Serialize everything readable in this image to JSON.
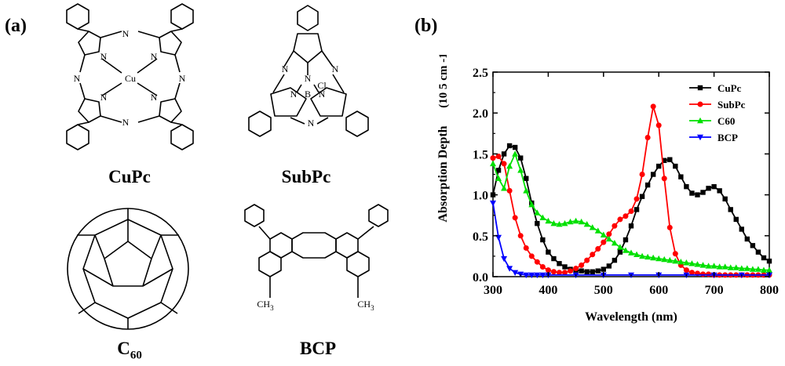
{
  "panel_a_label": "(a)",
  "panel_b_label": "(b)",
  "molecules": {
    "cupc": {
      "name": "CuPc",
      "center_atom": "Cu",
      "n": "N"
    },
    "subpc": {
      "name": "SubPc",
      "center_atom": "B",
      "ligand": "Cl",
      "n": "N"
    },
    "c60": {
      "name_main": "C",
      "name_sub": "60"
    },
    "bcp": {
      "name": "BCP",
      "methyl_label": "CH",
      "methyl_sub": "3"
    }
  },
  "chart_data": {
    "type": "line",
    "xlabel": "Wavelength (nm)",
    "ylabel": "Absorption Depth",
    "yunit": "(10 5 cm -1)",
    "xlim": [
      300,
      800
    ],
    "ylim": [
      0.0,
      2.5
    ],
    "xticks": [
      "300",
      "400",
      "500",
      "600",
      "700",
      "800"
    ],
    "yticks": [
      "0.0",
      "0.5",
      "1.0",
      "1.5",
      "2.0",
      "2.5"
    ],
    "legend_position": "top-right",
    "series": [
      {
        "name": "CuPc",
        "color": "#000000",
        "marker": "square",
        "x": [
          300,
          310,
          320,
          330,
          340,
          350,
          360,
          370,
          380,
          390,
          400,
          410,
          420,
          430,
          440,
          450,
          460,
          470,
          480,
          490,
          500,
          510,
          520,
          530,
          540,
          550,
          560,
          570,
          580,
          590,
          600,
          610,
          620,
          630,
          640,
          650,
          660,
          670,
          680,
          690,
          700,
          710,
          720,
          730,
          740,
          750,
          760,
          770,
          780,
          790,
          800
        ],
        "y": [
          1.0,
          1.3,
          1.5,
          1.6,
          1.58,
          1.45,
          1.2,
          0.9,
          0.65,
          0.45,
          0.3,
          0.22,
          0.16,
          0.12,
          0.09,
          0.08,
          0.07,
          0.06,
          0.06,
          0.07,
          0.09,
          0.13,
          0.2,
          0.3,
          0.45,
          0.62,
          0.82,
          0.98,
          1.12,
          1.25,
          1.35,
          1.42,
          1.43,
          1.35,
          1.22,
          1.1,
          1.02,
          1.0,
          1.03,
          1.08,
          1.1,
          1.05,
          0.95,
          0.82,
          0.7,
          0.58,
          0.46,
          0.38,
          0.3,
          0.23,
          0.19
        ]
      },
      {
        "name": "SubPc",
        "color": "#ff0000",
        "marker": "circle",
        "x": [
          300,
          310,
          320,
          330,
          340,
          350,
          360,
          370,
          380,
          390,
          400,
          410,
          420,
          430,
          440,
          450,
          460,
          470,
          480,
          490,
          500,
          510,
          520,
          530,
          540,
          550,
          560,
          570,
          580,
          590,
          600,
          610,
          620,
          630,
          640,
          650,
          660,
          670,
          680,
          690,
          700,
          710,
          720,
          730,
          740,
          750,
          760,
          770,
          780,
          790,
          800
        ],
        "y": [
          1.45,
          1.47,
          1.38,
          1.05,
          0.72,
          0.5,
          0.35,
          0.25,
          0.18,
          0.12,
          0.08,
          0.06,
          0.05,
          0.05,
          0.07,
          0.1,
          0.14,
          0.2,
          0.27,
          0.34,
          0.42,
          0.52,
          0.62,
          0.7,
          0.74,
          0.8,
          0.95,
          1.25,
          1.7,
          2.08,
          1.85,
          1.2,
          0.6,
          0.28,
          0.14,
          0.08,
          0.05,
          0.04,
          0.03,
          0.03,
          0.02,
          0.02,
          0.02,
          0.02,
          0.02,
          0.02,
          0.02,
          0.02,
          0.02,
          0.02,
          0.02
        ]
      },
      {
        "name": "C60",
        "color": "#00e000",
        "marker": "triangle-up",
        "x": [
          300,
          310,
          320,
          330,
          340,
          350,
          360,
          370,
          380,
          390,
          400,
          410,
          420,
          430,
          440,
          450,
          460,
          470,
          480,
          490,
          500,
          510,
          520,
          530,
          540,
          550,
          560,
          570,
          580,
          590,
          600,
          610,
          620,
          630,
          640,
          650,
          660,
          670,
          680,
          690,
          700,
          710,
          720,
          730,
          740,
          750,
          760,
          770,
          780,
          790,
          800
        ],
        "y": [
          1.38,
          1.2,
          1.08,
          1.35,
          1.5,
          1.3,
          1.05,
          0.88,
          0.78,
          0.72,
          0.68,
          0.65,
          0.64,
          0.65,
          0.67,
          0.68,
          0.67,
          0.64,
          0.6,
          0.56,
          0.51,
          0.46,
          0.41,
          0.36,
          0.32,
          0.29,
          0.27,
          0.25,
          0.24,
          0.23,
          0.22,
          0.21,
          0.2,
          0.19,
          0.18,
          0.17,
          0.16,
          0.15,
          0.14,
          0.13,
          0.13,
          0.12,
          0.12,
          0.11,
          0.11,
          0.1,
          0.1,
          0.09,
          0.09,
          0.08,
          0.08
        ]
      },
      {
        "name": "BCP",
        "color": "#0000ff",
        "marker": "triangle-down",
        "x": [
          300,
          310,
          320,
          330,
          340,
          350,
          360,
          370,
          380,
          390,
          400,
          450,
          500,
          550,
          600,
          650,
          700,
          750,
          800
        ],
        "y": [
          0.9,
          0.48,
          0.22,
          0.1,
          0.05,
          0.03,
          0.02,
          0.02,
          0.02,
          0.02,
          0.02,
          0.02,
          0.02,
          0.02,
          0.02,
          0.02,
          0.02,
          0.02,
          0.02
        ]
      }
    ]
  }
}
